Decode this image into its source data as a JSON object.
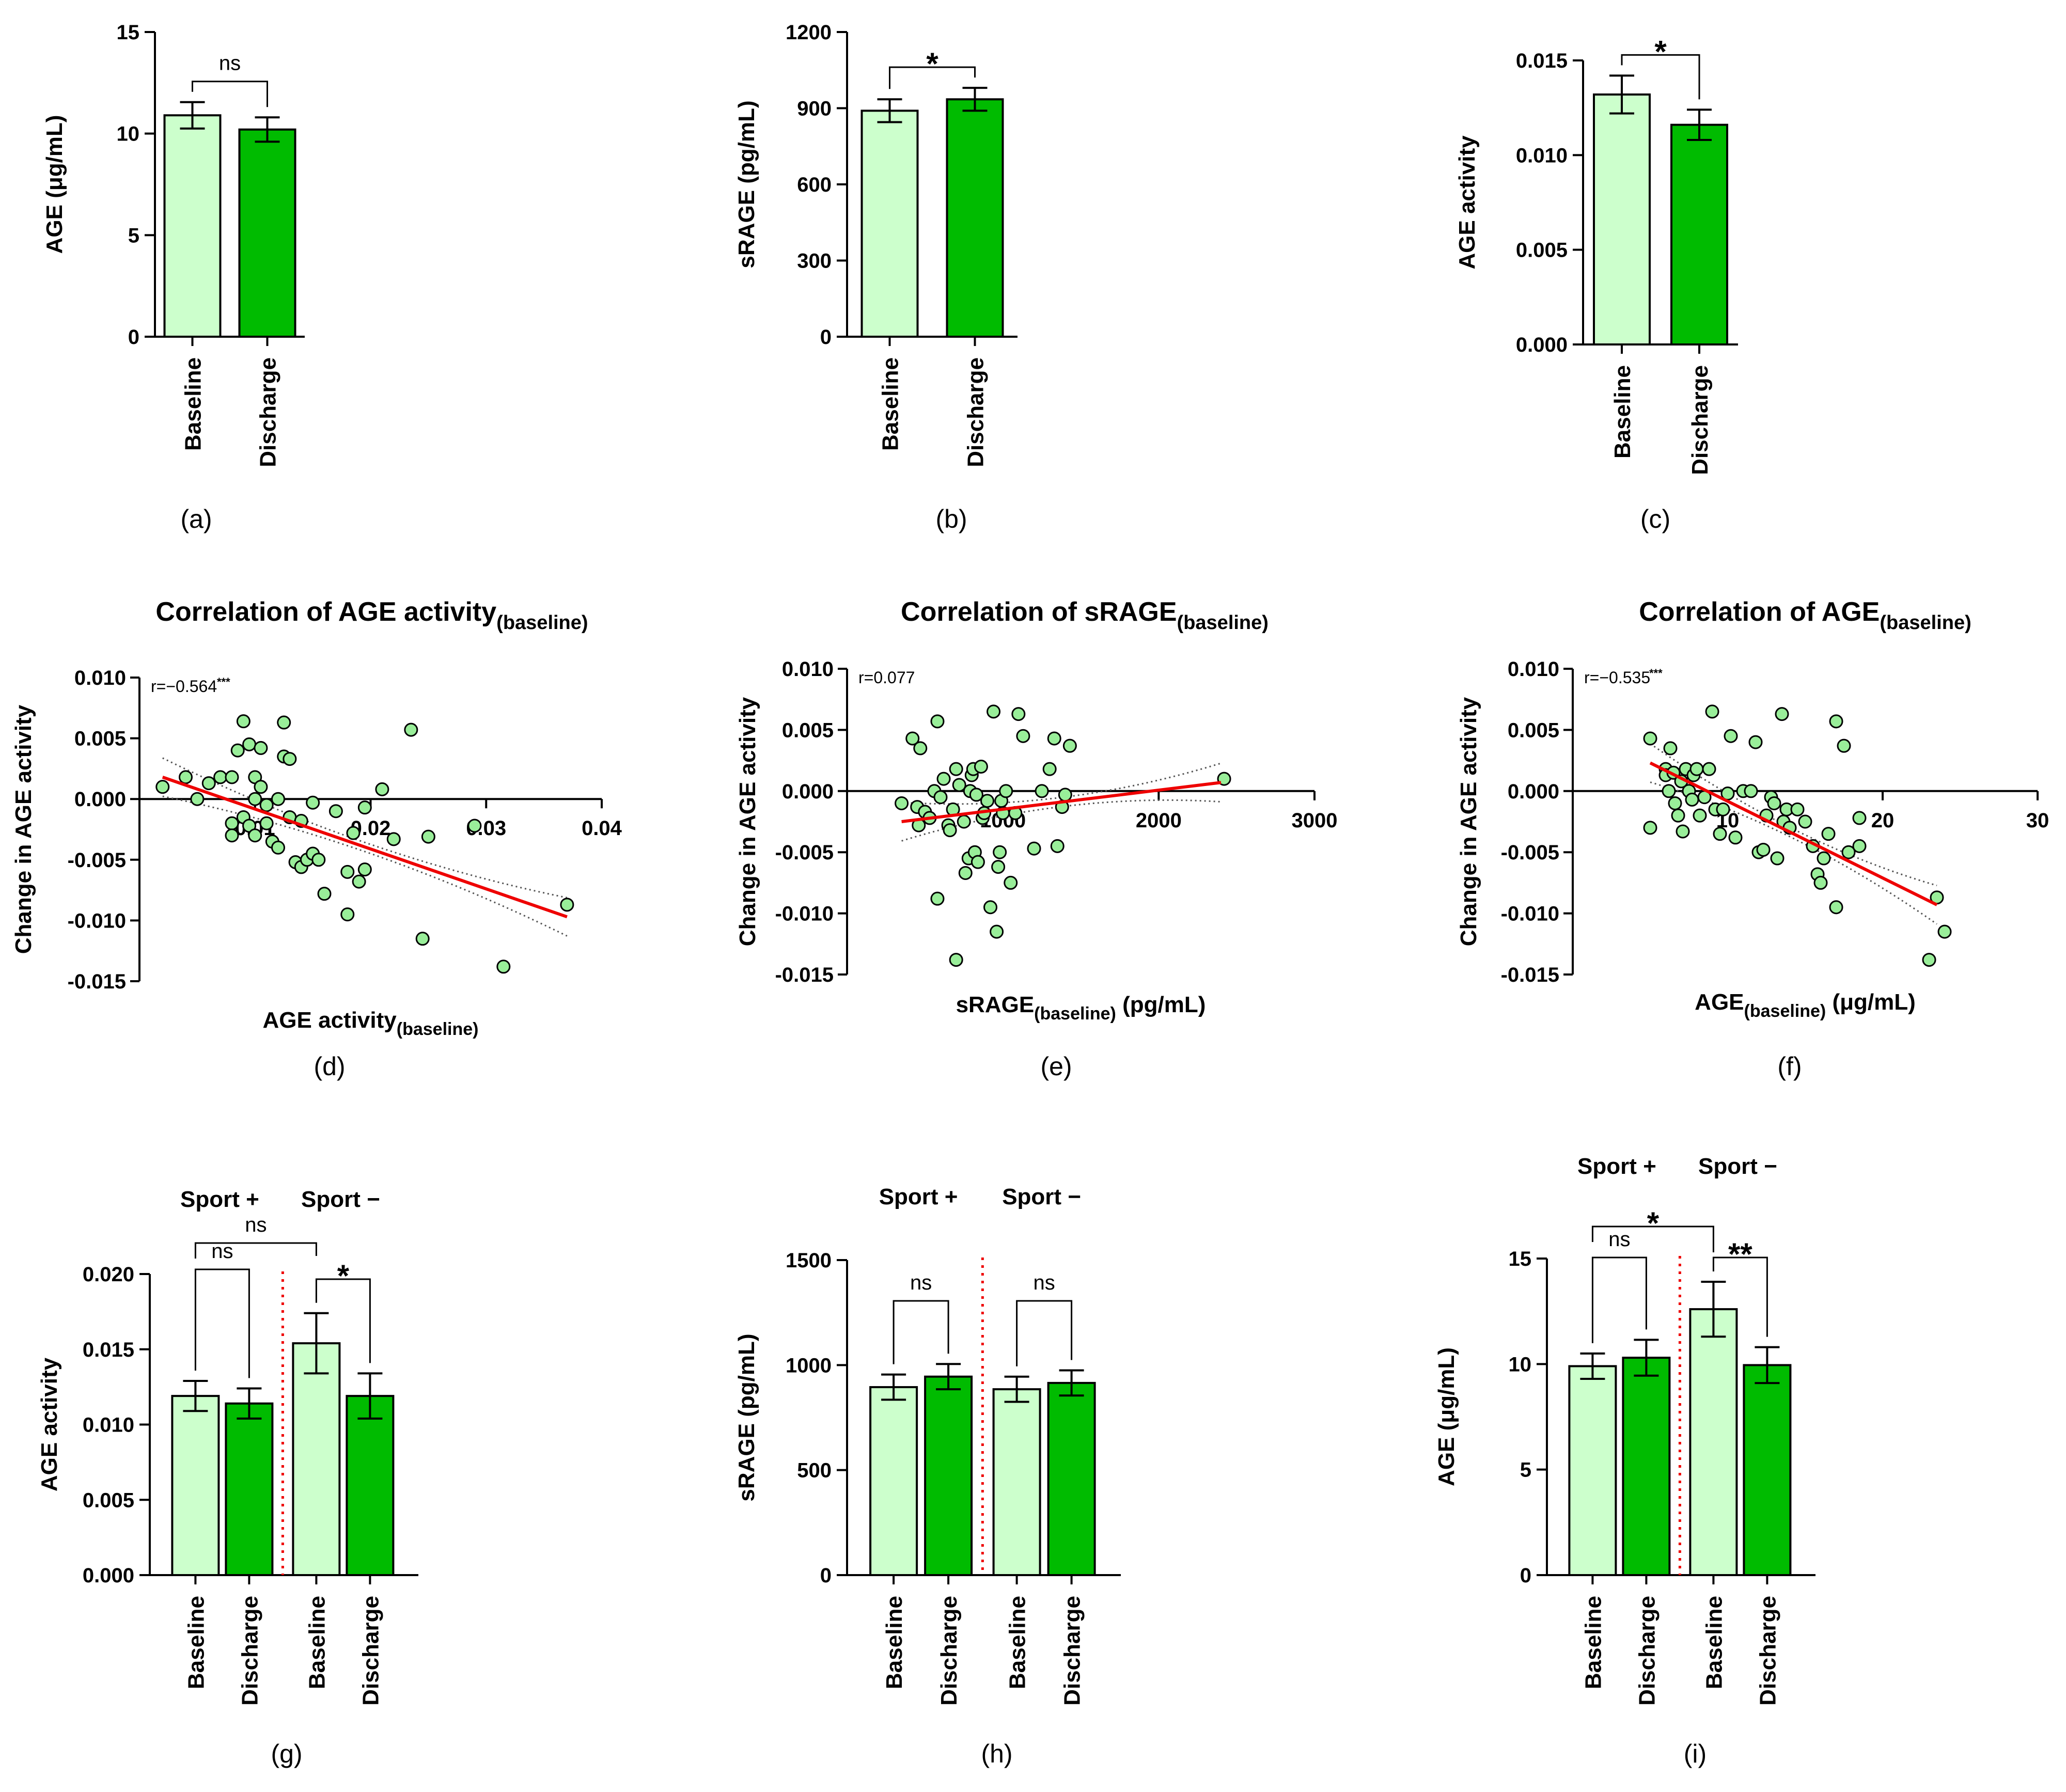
{
  "colors": {
    "baseline": "#ccffcc",
    "discharge": "#00bb00",
    "scatter": "#99ee99",
    "fit": "#ee0000",
    "separator": "#ee0000"
  },
  "chart_data": [
    {
      "id": "a",
      "type": "bar",
      "panel_label": "(a)",
      "ylabel": "AGE (μg/mL)",
      "ylim": [
        0,
        15
      ],
      "yticks": [
        "0",
        "5",
        "10",
        "15"
      ],
      "categories": [
        "Baseline",
        "Discharge"
      ],
      "values": [
        10.9,
        10.2
      ],
      "errors": [
        0.65,
        0.6
      ],
      "significance": [
        {
          "label": "ns",
          "from": 0,
          "to": 1
        }
      ]
    },
    {
      "id": "b",
      "type": "bar",
      "panel_label": "(b)",
      "ylabel": "sRAGE (pg/mL)",
      "ylim": [
        0,
        1200
      ],
      "yticks": [
        "0",
        "300",
        "600",
        "900",
        "1200"
      ],
      "categories": [
        "Baseline",
        "Discharge"
      ],
      "values": [
        890,
        935
      ],
      "errors": [
        45,
        45
      ],
      "significance": [
        {
          "label": "*",
          "from": 0,
          "to": 1
        }
      ]
    },
    {
      "id": "c",
      "type": "bar",
      "panel_label": "(c)",
      "ylabel": "AGE activity",
      "ylim": [
        0,
        0.015
      ],
      "yticks": [
        "0.000",
        "0.005",
        "0.010",
        "0.015"
      ],
      "categories": [
        "Baseline",
        "Discharge"
      ],
      "values": [
        0.0132,
        0.0116
      ],
      "errors": [
        0.001,
        0.0008
      ],
      "significance": [
        {
          "label": "*",
          "from": 0,
          "to": 1
        }
      ]
    },
    {
      "id": "d",
      "type": "scatter",
      "panel_label": "(d)",
      "title_main": "Correlation of AGE activity",
      "title_sub": "(baseline)",
      "xlabel_main": "AGE activity",
      "xlabel_sub": "(baseline)",
      "xlabel_tail": "",
      "ylabel": "Change in AGE activity",
      "xlim": [
        0,
        0.04
      ],
      "ylim": [
        -0.015,
        0.01
      ],
      "xticks": [
        "0.01",
        "0.02",
        "0.03",
        "0.04"
      ],
      "yticks": [
        "0.010",
        "0.005",
        "0.000",
        "-0.005",
        "-0.010",
        "-0.015"
      ],
      "r_text": "r=−0.564",
      "r_stars": "***",
      "fit": {
        "x": [
          0.002,
          0.037
        ],
        "y": [
          0.0018,
          -0.0097
        ]
      },
      "points": [
        [
          0.002,
          0.001
        ],
        [
          0.004,
          0.0018
        ],
        [
          0.005,
          0.0
        ],
        [
          0.006,
          0.0013
        ],
        [
          0.007,
          0.0018
        ],
        [
          0.008,
          0.0018
        ],
        [
          0.008,
          -0.002
        ],
        [
          0.008,
          -0.003
        ],
        [
          0.0085,
          0.004
        ],
        [
          0.009,
          0.0064
        ],
        [
          0.009,
          -0.0015
        ],
        [
          0.0095,
          0.0045
        ],
        [
          0.0095,
          -0.0022
        ],
        [
          0.01,
          0.0018
        ],
        [
          0.01,
          0.0
        ],
        [
          0.01,
          -0.003
        ],
        [
          0.0105,
          0.0042
        ],
        [
          0.0105,
          0.001
        ],
        [
          0.011,
          -0.0005
        ],
        [
          0.011,
          -0.002
        ],
        [
          0.0115,
          -0.0035
        ],
        [
          0.012,
          0.0
        ],
        [
          0.012,
          -0.004
        ],
        [
          0.0125,
          0.0063
        ],
        [
          0.0125,
          0.0035
        ],
        [
          0.013,
          0.0033
        ],
        [
          0.013,
          -0.0015
        ],
        [
          0.0135,
          -0.0052
        ],
        [
          0.014,
          -0.0056
        ],
        [
          0.014,
          -0.0018
        ],
        [
          0.0145,
          -0.005
        ],
        [
          0.015,
          -0.0045
        ],
        [
          0.015,
          -0.0003
        ],
        [
          0.0155,
          -0.005
        ],
        [
          0.016,
          -0.0078
        ],
        [
          0.017,
          -0.001
        ],
        [
          0.018,
          -0.006
        ],
        [
          0.018,
          -0.0095
        ],
        [
          0.0185,
          -0.0028
        ],
        [
          0.019,
          -0.0068
        ],
        [
          0.0195,
          -0.0058
        ],
        [
          0.0195,
          -0.0007
        ],
        [
          0.021,
          0.0008
        ],
        [
          0.022,
          -0.0033
        ],
        [
          0.0235,
          0.0057
        ],
        [
          0.0245,
          -0.0115
        ],
        [
          0.025,
          -0.0031
        ],
        [
          0.029,
          -0.0022
        ],
        [
          0.0315,
          -0.0138
        ],
        [
          0.037,
          -0.0087
        ]
      ]
    },
    {
      "id": "e",
      "type": "scatter",
      "panel_label": "(e)",
      "title_main": "Correlation of sRAGE",
      "title_sub": "(baseline)",
      "xlabel_main": "sRAGE",
      "xlabel_sub": "(baseline)",
      "xlabel_tail": " (pg/mL)",
      "ylabel": "Change in AGE activity",
      "xlim": [
        0,
        3000
      ],
      "ylim": [
        -0.015,
        0.01
      ],
      "xticks": [
        "1000",
        "2000",
        "3000"
      ],
      "yticks": [
        "0.010",
        "0.005",
        "0.000",
        "-0.005",
        "-0.010",
        "-0.015"
      ],
      "r_text": "r=0.077",
      "r_stars": "",
      "fit": {
        "x": [
          350,
          2400
        ],
        "y": [
          -0.0025,
          0.0007
        ]
      },
      "points": [
        [
          350,
          -0.001
        ],
        [
          420,
          0.0043
        ],
        [
          450,
          -0.0013
        ],
        [
          460,
          -0.0028
        ],
        [
          470,
          0.0035
        ],
        [
          500,
          -0.0017
        ],
        [
          530,
          -0.0022
        ],
        [
          560,
          0.0
        ],
        [
          580,
          0.0057
        ],
        [
          580,
          -0.0088
        ],
        [
          600,
          -0.0005
        ],
        [
          620,
          0.001
        ],
        [
          650,
          -0.0028
        ],
        [
          660,
          -0.0032
        ],
        [
          680,
          -0.0015
        ],
        [
          700,
          0.0018
        ],
        [
          700,
          -0.0138
        ],
        [
          720,
          0.0005
        ],
        [
          750,
          -0.0025
        ],
        [
          760,
          -0.0067
        ],
        [
          780,
          -0.0055
        ],
        [
          790,
          -0.0
        ],
        [
          800,
          0.0013
        ],
        [
          810,
          0.0018
        ],
        [
          820,
          -0.005
        ],
        [
          830,
          -0.0003
        ],
        [
          840,
          -0.0058
        ],
        [
          860,
          0.002
        ],
        [
          870,
          -0.0022
        ],
        [
          880,
          -0.0018
        ],
        [
          900,
          -0.0008
        ],
        [
          920,
          -0.0095
        ],
        [
          940,
          0.0065
        ],
        [
          960,
          -0.0115
        ],
        [
          970,
          -0.0062
        ],
        [
          980,
          -0.005
        ],
        [
          990,
          -0.0008
        ],
        [
          1000,
          -0.0018
        ],
        [
          1020,
          0.0
        ],
        [
          1050,
          -0.0075
        ],
        [
          1080,
          -0.0018
        ],
        [
          1100,
          0.0063
        ],
        [
          1130,
          0.0045
        ],
        [
          1200,
          -0.0047
        ],
        [
          1250,
          0.0
        ],
        [
          1300,
          0.0018
        ],
        [
          1330,
          0.0043
        ],
        [
          1350,
          -0.0045
        ],
        [
          1380,
          -0.0013
        ],
        [
          1400,
          -0.0003
        ],
        [
          1430,
          0.0037
        ],
        [
          2420,
          0.001
        ]
      ]
    },
    {
      "id": "f",
      "type": "scatter",
      "panel_label": "(f)",
      "title_main": "Correlation of AGE",
      "title_sub": "(baseline)",
      "xlabel_main": "AGE",
      "xlabel_sub": "(baseline)",
      "xlabel_tail": " (μg/mL)",
      "ylabel": "Change in AGE activity",
      "xlim": [
        0,
        30
      ],
      "ylim": [
        -0.015,
        0.01
      ],
      "xticks": [
        "10",
        "20",
        "30"
      ],
      "yticks": [
        "0.010",
        "0.005",
        "0.000",
        "-0.005",
        "-0.010",
        "-0.015"
      ],
      "r_text": "r=−0.535",
      "r_stars": "***",
      "fit": {
        "x": [
          5,
          23.5
        ],
        "y": [
          0.0023,
          -0.0093
        ]
      },
      "points": [
        [
          5,
          0.0043
        ],
        [
          5,
          -0.003
        ],
        [
          6,
          0.0018
        ],
        [
          6,
          0.0013
        ],
        [
          6.2,
          0.0
        ],
        [
          6.3,
          0.0035
        ],
        [
          6.5,
          0.0015
        ],
        [
          6.6,
          -0.001
        ],
        [
          6.8,
          -0.002
        ],
        [
          7,
          0.0008
        ],
        [
          7.1,
          -0.0033
        ],
        [
          7.3,
          0.0018
        ],
        [
          7.5,
          0.0
        ],
        [
          7.7,
          -0.0007
        ],
        [
          7.8,
          0.0013
        ],
        [
          8,
          0.0018
        ],
        [
          8.2,
          -0.002
        ],
        [
          8.5,
          -0.0005
        ],
        [
          8.8,
          0.0018
        ],
        [
          9,
          0.0065
        ],
        [
          9.2,
          -0.0015
        ],
        [
          9.5,
          -0.0035
        ],
        [
          9.7,
          -0.0015
        ],
        [
          10,
          -0.0002
        ],
        [
          10.2,
          0.0045
        ],
        [
          10.5,
          -0.0038
        ],
        [
          11,
          0.0
        ],
        [
          11.5,
          0.0
        ],
        [
          11.8,
          0.004
        ],
        [
          12,
          -0.005
        ],
        [
          12.3,
          -0.0048
        ],
        [
          12.5,
          -0.002
        ],
        [
          12.8,
          -0.0005
        ],
        [
          13,
          -0.001
        ],
        [
          13.2,
          -0.0055
        ],
        [
          13.5,
          0.0063
        ],
        [
          13.6,
          -0.0025
        ],
        [
          13.8,
          -0.0015
        ],
        [
          14,
          -0.003
        ],
        [
          14.5,
          -0.0015
        ],
        [
          15,
          -0.0025
        ],
        [
          15.5,
          -0.0045
        ],
        [
          15.8,
          -0.0068
        ],
        [
          16,
          -0.0075
        ],
        [
          16.2,
          -0.0055
        ],
        [
          16.5,
          -0.0035
        ],
        [
          17,
          -0.0095
        ],
        [
          17,
          0.0057
        ],
        [
          17.5,
          0.0037
        ],
        [
          17.8,
          -0.005
        ],
        [
          18.5,
          -0.0045
        ],
        [
          18.5,
          -0.0022
        ],
        [
          23,
          -0.0138
        ],
        [
          23.5,
          -0.0087
        ],
        [
          24,
          -0.0115
        ]
      ]
    },
    {
      "id": "g",
      "type": "bar",
      "panel_label": "(g)",
      "ylabel": "AGE activity",
      "ylim": [
        0,
        0.02
      ],
      "yticks": [
        "0.000",
        "0.005",
        "0.010",
        "0.015",
        "0.020"
      ],
      "groups": [
        "Sport +",
        "Sport −"
      ],
      "categories": [
        "Baseline",
        "Discharge",
        "Baseline",
        "Discharge"
      ],
      "values": [
        0.0119,
        0.0114,
        0.0154,
        0.0119
      ],
      "errors": [
        0.001,
        0.001,
        0.002,
        0.0015
      ],
      "significance": [
        {
          "label": "ns",
          "from": 0,
          "to": 1
        },
        {
          "label": "*",
          "from": 2,
          "to": 3
        },
        {
          "label": "ns",
          "from": 0,
          "to": 2
        }
      ]
    },
    {
      "id": "h",
      "type": "bar",
      "panel_label": "(h)",
      "ylabel": "sRAGE (pg/mL)",
      "ylim": [
        0,
        1500
      ],
      "yticks": [
        "0",
        "500",
        "1000",
        "1500"
      ],
      "groups": [
        "Sport +",
        "Sport −"
      ],
      "categories": [
        "Baseline",
        "Discharge",
        "Baseline",
        "Discharge"
      ],
      "values": [
        895,
        945,
        885,
        915
      ],
      "errors": [
        60,
        60,
        60,
        60
      ],
      "significance": [
        {
          "label": "ns",
          "from": 0,
          "to": 1
        },
        {
          "label": "ns",
          "from": 2,
          "to": 3
        }
      ]
    },
    {
      "id": "i",
      "type": "bar",
      "panel_label": "(i)",
      "ylabel": "AGE (μg/mL)",
      "ylim": [
        0,
        15
      ],
      "yticks": [
        "0",
        "5",
        "10",
        "15"
      ],
      "groups": [
        "Sport +",
        "Sport −"
      ],
      "categories": [
        "Baseline",
        "Discharge",
        "Baseline",
        "Discharge"
      ],
      "values": [
        9.9,
        10.3,
        12.6,
        9.95
      ],
      "errors": [
        0.6,
        0.85,
        1.3,
        0.85
      ],
      "significance": [
        {
          "label": "ns",
          "from": 0,
          "to": 1
        },
        {
          "label": "**",
          "from": 2,
          "to": 3
        },
        {
          "label": "*",
          "from": 0,
          "to": 2
        }
      ]
    }
  ]
}
